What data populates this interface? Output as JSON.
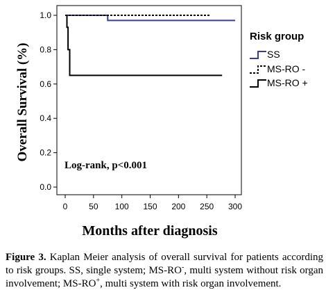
{
  "chart_data": {
    "type": "line",
    "subtype": "kaplan-meier",
    "xlabel": "Months after diagnosis",
    "ylabel": "Overall Survival (%)",
    "xlim": [
      0,
      300
    ],
    "ylim": [
      0.0,
      1.0
    ],
    "x_ticks": [
      "0",
      "50",
      "100",
      "150",
      "200",
      "250",
      "300"
    ],
    "y_ticks": [
      "0.0",
      "0.2",
      "0.4",
      "0.6",
      "0.8",
      "1.0"
    ],
    "grid": false,
    "legend_title": "Risk group",
    "legend_position": "right",
    "annotation": "Log-rank, p<0.001",
    "series": [
      {
        "name": "SS",
        "color": "#3a3a9c",
        "style": "solid",
        "x": [
          0,
          75,
          75,
          300
        ],
        "y": [
          1.0,
          1.0,
          0.97,
          0.97
        ]
      },
      {
        "name": "MS-RO -",
        "color": "#000000",
        "style": "dotted",
        "x": [
          0,
          255
        ],
        "y": [
          1.0,
          1.0
        ]
      },
      {
        "name": "MS-RO +",
        "color": "#000000",
        "style": "solid",
        "x": [
          0,
          3,
          3,
          5,
          5,
          8,
          8,
          277
        ],
        "y": [
          1.0,
          1.0,
          0.93,
          0.93,
          0.8,
          0.8,
          0.65,
          0.65
        ]
      }
    ]
  },
  "caption": {
    "label": "Figure 3.",
    "p1": " Kaplan Meier analysis of overall survival for patients according to risk groups. SS, single system; MS-RO",
    "sup1": "-",
    "p2": ", multi system without risk organ involvement; MS-RO",
    "sup2": "+",
    "p3": ", multi system with risk organ involvement."
  }
}
